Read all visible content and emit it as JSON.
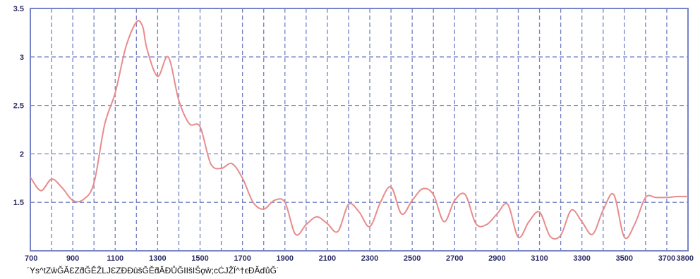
{
  "chart_data": {
    "type": "line",
    "title": "",
    "xlabel": "",
    "ylabel": "",
    "xlim": [
      700,
      3800
    ],
    "ylim": [
      1.0,
      3.5
    ],
    "x_ticks": [
      700,
      900,
      1100,
      1300,
      1500,
      1700,
      1900,
      2100,
      2300,
      2500,
      2700,
      2900,
      3100,
      3300,
      3500,
      3700,
      3800
    ],
    "y_ticks": [
      1.5,
      2,
      2.5,
      3,
      3.5
    ],
    "y_tick_labels": [
      "1.5",
      "2",
      "2.5",
      "3",
      "3.5"
    ],
    "grid": true,
    "legend": "none",
    "series": [
      {
        "color": "#e88c8c",
        "x": [
          700,
          750,
          800,
          850,
          900,
          950,
          1000,
          1050,
          1100,
          1150,
          1200,
          1230,
          1250,
          1300,
          1350,
          1400,
          1450,
          1500,
          1550,
          1600,
          1650,
          1700,
          1750,
          1800,
          1850,
          1900,
          1950,
          2000,
          2050,
          2100,
          2150,
          2200,
          2250,
          2300,
          2350,
          2400,
          2450,
          2500,
          2550,
          2600,
          2650,
          2700,
          2750,
          2800,
          2850,
          2900,
          2950,
          3000,
          3050,
          3100,
          3150,
          3200,
          3250,
          3300,
          3350,
          3400,
          3450,
          3500,
          3550,
          3600,
          3650,
          3700,
          3750,
          3800
        ],
        "y": [
          1.76,
          1.62,
          1.74,
          1.65,
          1.52,
          1.53,
          1.7,
          2.3,
          2.63,
          3.1,
          3.36,
          3.31,
          3.08,
          2.8,
          3.0,
          2.55,
          2.31,
          2.28,
          1.9,
          1.85,
          1.9,
          1.75,
          1.5,
          1.43,
          1.52,
          1.5,
          1.17,
          1.27,
          1.35,
          1.28,
          1.2,
          1.48,
          1.4,
          1.25,
          1.5,
          1.66,
          1.38,
          1.52,
          1.64,
          1.58,
          1.3,
          1.52,
          1.58,
          1.28,
          1.27,
          1.38,
          1.48,
          1.14,
          1.3,
          1.4,
          1.15,
          1.16,
          1.42,
          1.3,
          1.17,
          1.42,
          1.58,
          1.14,
          1.28,
          1.55,
          1.55,
          1.55,
          1.56,
          1.56
        ]
      }
    ],
    "caption": "´Ys^tZŵĞĂƐZƌĞĚŽǇƐZĐĐûšĞĚƌĂĐŮĞIIšIŠϙŵ;ϲĊJŽÏ^†ϵĐĂďůĞ˙"
  }
}
